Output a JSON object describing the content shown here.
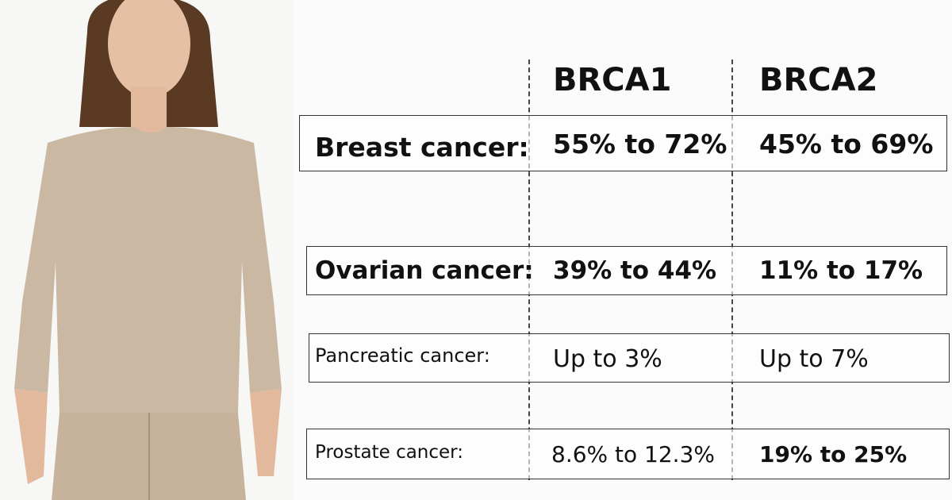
{
  "table": {
    "header": [
      "BRCA1",
      "BRCA2"
    ],
    "rows": [
      [
        "Breast cancer:",
        "55% to 72%",
        "45% to 69%"
      ],
      [
        "Ovarian cancer:",
        "39% to 44%",
        "11% to 17%"
      ],
      [
        "Pancreatic cancer:",
        "Up to 3%",
        "Up to 7%"
      ],
      [
        "Prostate cancer:",
        "8.6% to 12.3%",
        "19% to 25%"
      ]
    ]
  }
}
